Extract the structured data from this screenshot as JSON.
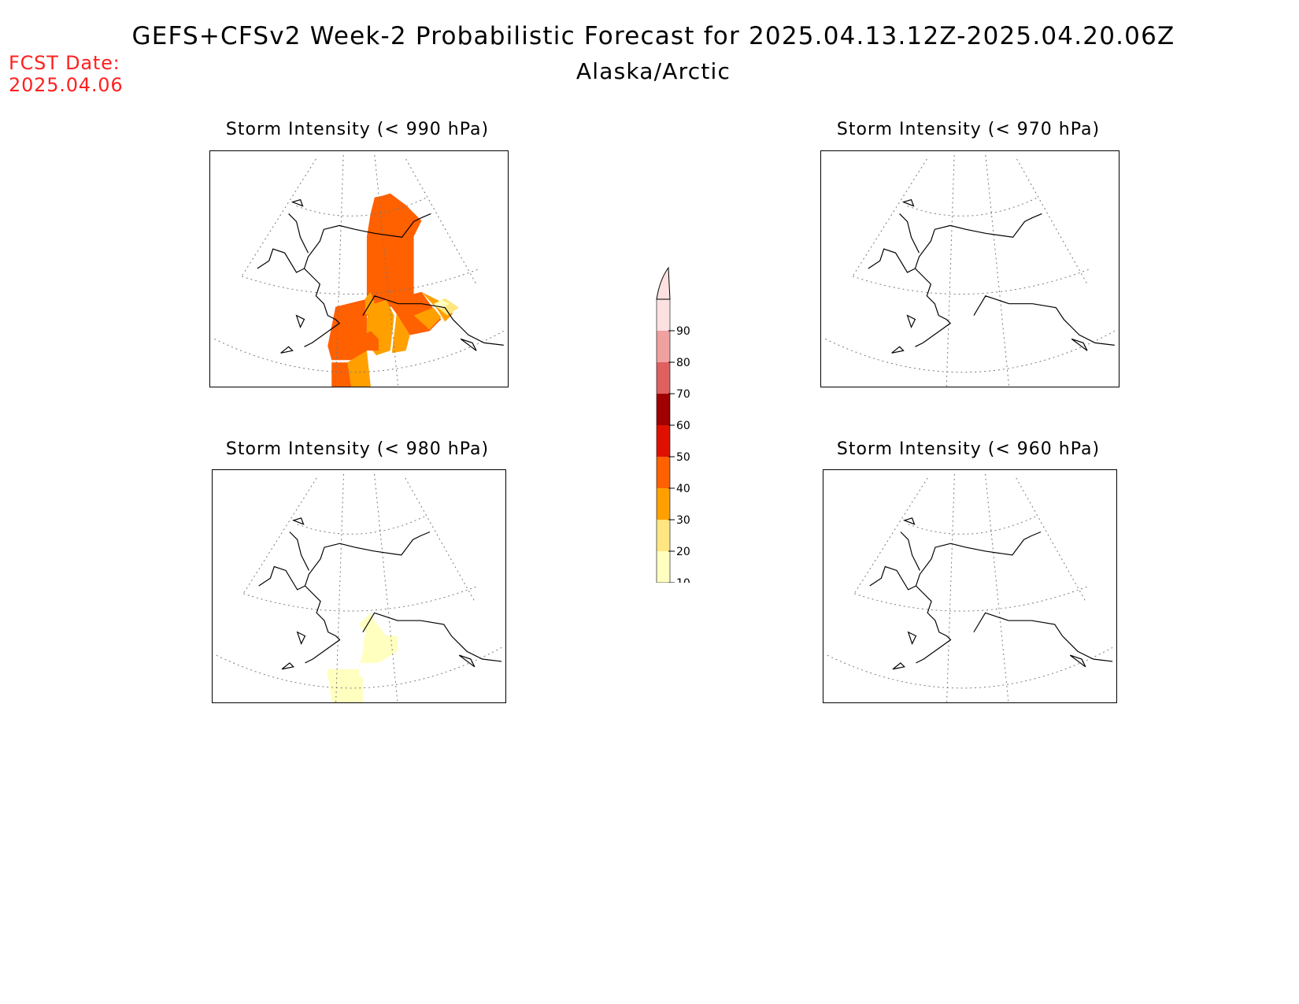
{
  "header": {
    "title": "GEFS+CFSv2 Week-2 Probabilistic Forecast for 2025.04.13.12Z-2025.04.20.06Z",
    "region": "Alaska/Arctic",
    "fcst_label": "FCST Date:",
    "fcst_date": "2025.04.06"
  },
  "panels": [
    {
      "id": "p990",
      "title": "Storm Intensity (< 990 hPa)"
    },
    {
      "id": "p970",
      "title": "Storm Intensity (< 970 hPa)"
    },
    {
      "id": "p980",
      "title": "Storm Intensity (< 980 hPa)"
    },
    {
      "id": "p960",
      "title": "Storm Intensity (< 960 hPa)"
    }
  ],
  "colorbar": {
    "levels": [
      "10",
      "20",
      "30",
      "40",
      "50",
      "60",
      "70",
      "80",
      "90"
    ],
    "colors": [
      "#ffffc0",
      "#ffe680",
      "#ffa000",
      "#ff6000",
      "#e01000",
      "#a00000",
      "#e06060",
      "#f0a0a0",
      "#fde0e0"
    ]
  }
}
